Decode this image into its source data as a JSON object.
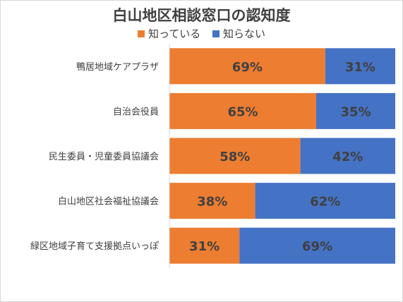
{
  "chart_data": {
    "type": "bar",
    "orientation": "horizontal",
    "stacked": "100%",
    "title": "白山地区相談窓口の認知度",
    "categories": [
      "鴨居地域ケアプラザ",
      "自治会役員",
      "民生委員・児童委員協議会",
      "白山地区社会福祉協議会",
      "緑区地域子育て支援拠点いっぽ"
    ],
    "series": [
      {
        "name": "知っている",
        "color": "#ed7d31",
        "values": [
          69,
          65,
          58,
          38,
          31
        ],
        "labels": [
          "69%",
          "65%",
          "58%",
          "38%",
          "31%"
        ]
      },
      {
        "name": "知らない",
        "color": "#4472c4",
        "values": [
          31,
          35,
          42,
          62,
          69
        ],
        "labels": [
          "31%",
          "35%",
          "42%",
          "62%",
          "69%"
        ]
      }
    ],
    "xlim": [
      0,
      100
    ],
    "legend_position": "top",
    "grid": false
  }
}
